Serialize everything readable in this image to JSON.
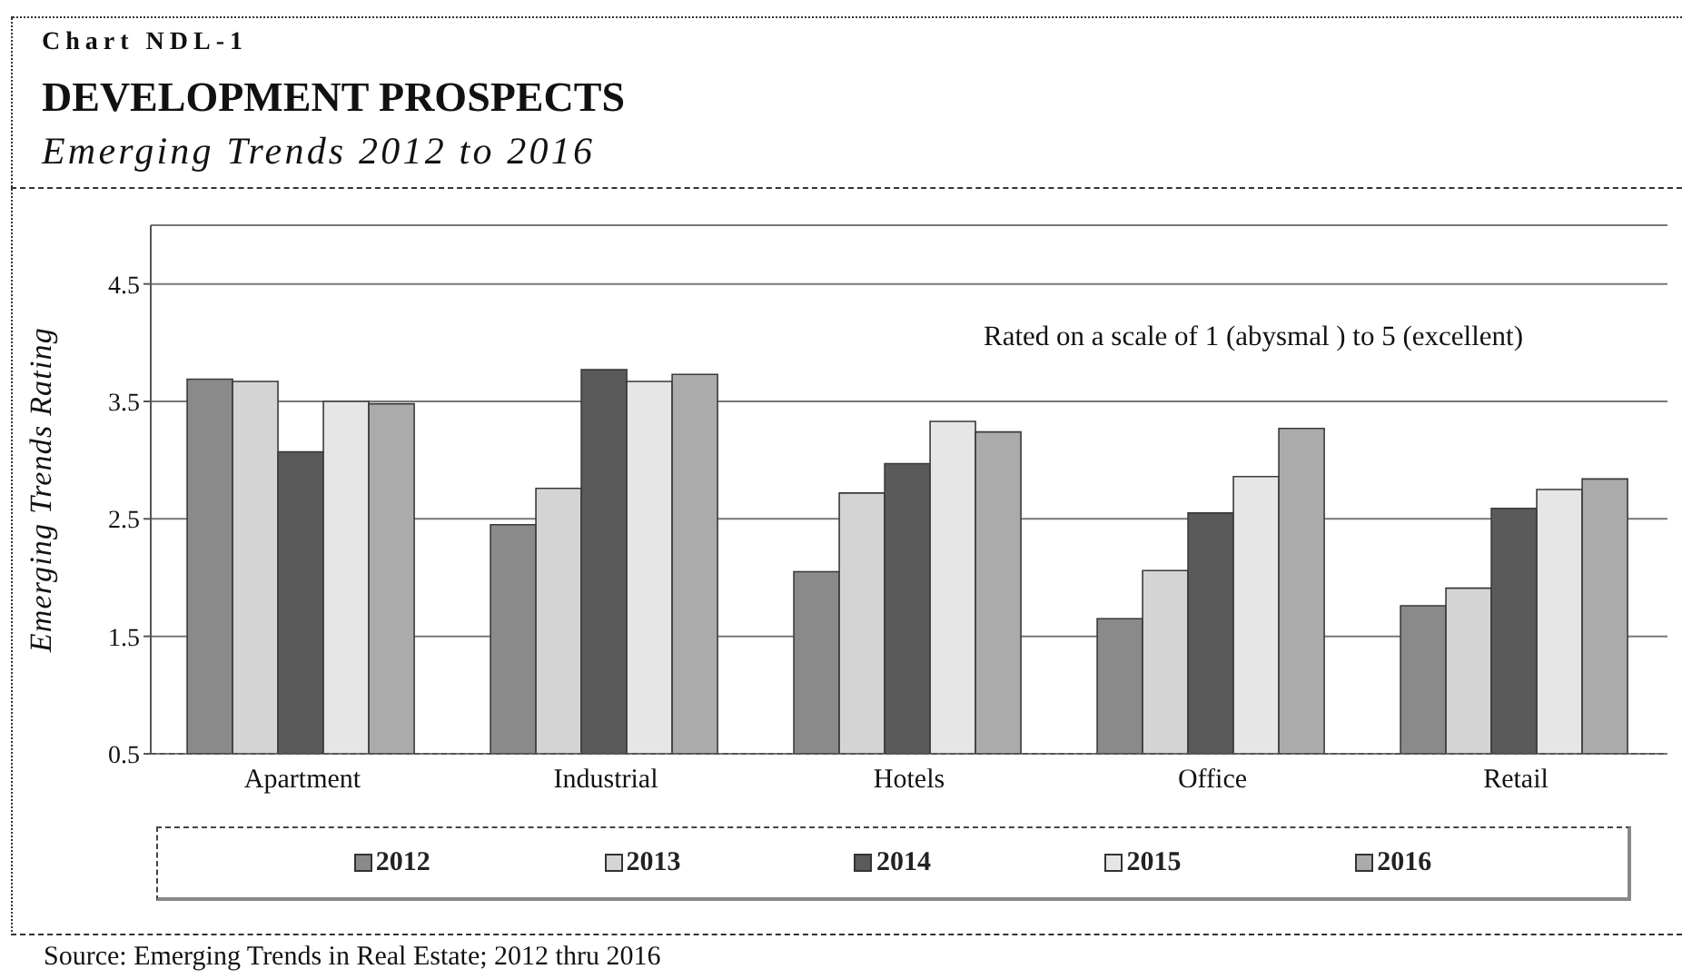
{
  "chart_data": {
    "type": "bar",
    "title": "DEVELOPMENT PROSPECTS",
    "subtitle": "Emerging Trends 2012 to 2016",
    "ylabel": "Emerging Trends Rating",
    "annotations": [
      "Chart NDL-1",
      "Rated on a scale of 1 (abysmal ) to 5 (excellent)",
      "Source: Emerging Trends in Real Estate; 2012 thru 2016"
    ],
    "categories": [
      "Apartment",
      "Industrial",
      "Hotels",
      "Office",
      "Retail"
    ],
    "series": [
      {
        "name": "2012",
        "color": "#8a8a8a",
        "values": [
          3.69,
          2.45,
          2.05,
          1.65,
          1.76
        ]
      },
      {
        "name": "2013",
        "color": "#d4d4d4",
        "values": [
          3.67,
          2.76,
          2.72,
          2.06,
          1.91
        ]
      },
      {
        "name": "2014",
        "color": "#5a5a5a",
        "values": [
          3.07,
          3.77,
          2.97,
          2.55,
          2.59
        ]
      },
      {
        "name": "2015",
        "color": "#e6e6e6",
        "values": [
          3.5,
          3.67,
          3.33,
          2.86,
          2.75
        ]
      },
      {
        "name": "2016",
        "color": "#ababab",
        "values": [
          3.48,
          3.73,
          3.24,
          3.27,
          2.84
        ]
      }
    ],
    "ylim": [
      0.5,
      5
    ],
    "yticks": [
      0.5,
      1.5,
      2.5,
      3.5,
      4.5
    ],
    "grid": "y",
    "legend": "bottom"
  }
}
